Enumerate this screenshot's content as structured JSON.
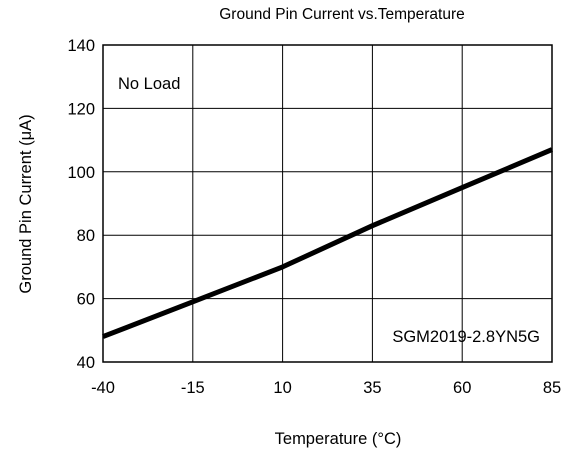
{
  "chart_data": {
    "type": "line",
    "title": "Ground Pin Current vs.Temperature",
    "xlabel": "Temperature (°C)",
    "ylabel": "Ground Pin Current (μA)",
    "xlim": [
      -40,
      85
    ],
    "ylim": [
      40,
      140
    ],
    "xticks": [
      -40,
      -15,
      10,
      35,
      60,
      85
    ],
    "yticks": [
      40,
      60,
      80,
      100,
      120,
      140
    ],
    "grid": true,
    "annotations": [
      "No Load",
      "SGM2019-2.8YN5G"
    ],
    "series": [
      {
        "x": [
          -40,
          -15,
          10,
          35,
          60,
          85
        ],
        "y": [
          48,
          59,
          70,
          83,
          95,
          107
        ],
        "color": "#000000"
      }
    ]
  }
}
